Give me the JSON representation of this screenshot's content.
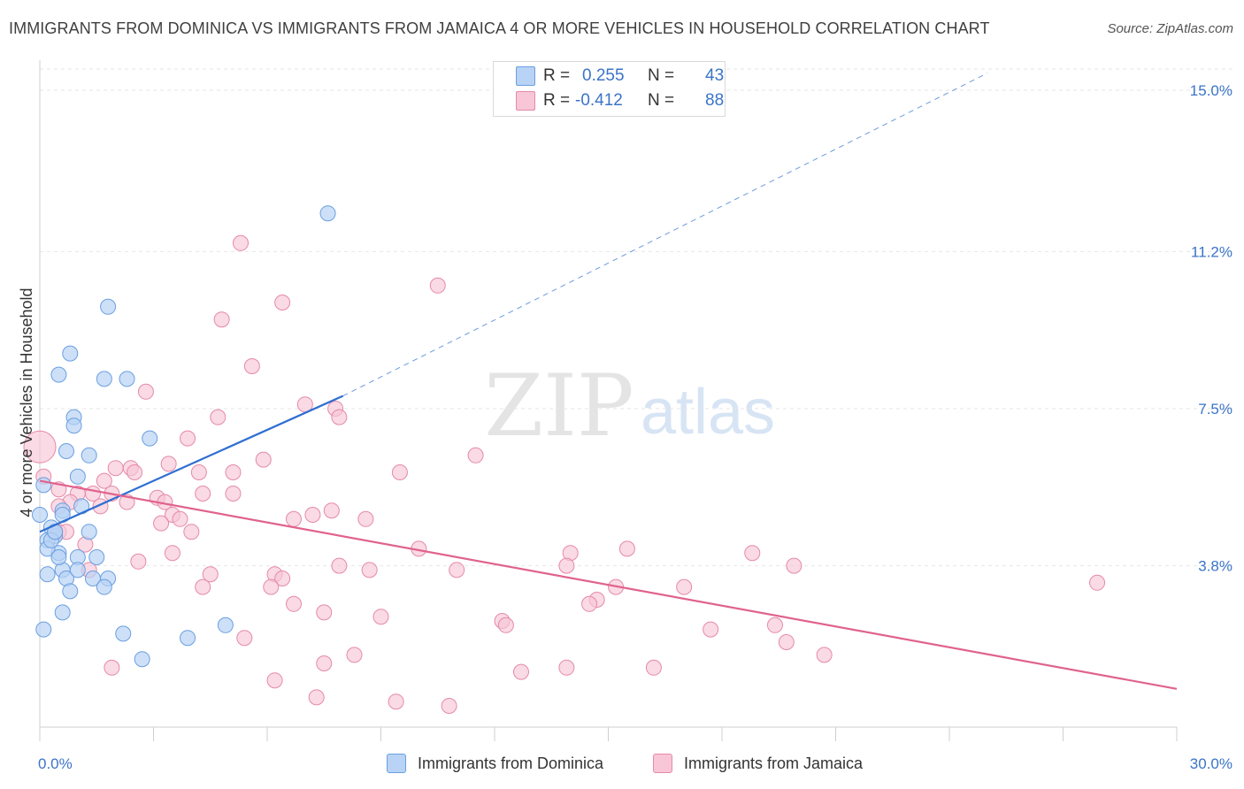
{
  "title": "IMMIGRANTS FROM DOMINICA VS IMMIGRANTS FROM JAMAICA 4 OR MORE VEHICLES IN HOUSEHOLD CORRELATION CHART",
  "source": "Source: ZipAtlas.com",
  "watermark": {
    "zip": "ZIP",
    "atlas": "atlas"
  },
  "legend": {
    "rows": [
      {
        "r_label": "R =",
        "r_value": "0.255",
        "n_label": "N =",
        "n_value": "43"
      },
      {
        "r_label": "R =",
        "r_value": "-0.412",
        "n_label": "N =",
        "n_value": "88"
      }
    ]
  },
  "colors": {
    "dominica_fill": "#b8d3f5",
    "dominica_stroke": "#6a9fe0",
    "dominica_line": "#2f6fd1",
    "jamaica_fill": "#f8c6d6",
    "jamaica_stroke": "#e58aa8",
    "jamaica_line": "#e0628e",
    "tick_label": "#3b74c7",
    "grid": "#e6e6e6"
  },
  "chart_data": {
    "type": "scatter",
    "title": "IMMIGRANTS FROM DOMINICA VS IMMIGRANTS FROM JAMAICA 4 OR MORE VEHICLES IN HOUSEHOLD CORRELATION CHART",
    "xlabel": "",
    "ylabel": "4 or more Vehicles in Household",
    "xlim": [
      0,
      30
    ],
    "ylim": [
      0,
      15.5
    ],
    "x_tick_labels": [
      "0.0%",
      "30.0%"
    ],
    "y_ticks": [
      3.8,
      7.5,
      11.2,
      15.0
    ],
    "y_tick_labels": [
      "3.8%",
      "7.5%",
      "11.2%",
      "15.0%"
    ],
    "grid": "horizontal dashed",
    "legend_position": "top-center",
    "series": [
      {
        "name": "Immigrants from Dominica",
        "r": 0.255,
        "n": 43,
        "trend": {
          "x": [
            0.0,
            8.0
          ],
          "y": [
            4.6,
            7.8
          ],
          "extended_to": [
            25.0,
            15.4
          ]
        },
        "points": [
          [
            7.6,
            12.1
          ],
          [
            1.8,
            9.9
          ],
          [
            0.8,
            8.8
          ],
          [
            0.5,
            8.3
          ],
          [
            1.7,
            8.2
          ],
          [
            2.3,
            8.2
          ],
          [
            0.9,
            7.3
          ],
          [
            0.9,
            7.1
          ],
          [
            2.9,
            6.8
          ],
          [
            0.7,
            6.5
          ],
          [
            1.3,
            6.4
          ],
          [
            0.1,
            5.7
          ],
          [
            1.0,
            5.9
          ],
          [
            0.6,
            5.1
          ],
          [
            1.1,
            5.2
          ],
          [
            0.0,
            5.0
          ],
          [
            0.3,
            4.7
          ],
          [
            0.4,
            4.5
          ],
          [
            1.3,
            4.6
          ],
          [
            0.2,
            4.4
          ],
          [
            0.5,
            4.1
          ],
          [
            1.0,
            4.0
          ],
          [
            1.5,
            4.0
          ],
          [
            0.6,
            3.7
          ],
          [
            0.2,
            3.6
          ],
          [
            0.7,
            3.5
          ],
          [
            1.4,
            3.5
          ],
          [
            1.8,
            3.5
          ],
          [
            0.8,
            3.2
          ],
          [
            1.7,
            3.3
          ],
          [
            0.6,
            2.7
          ],
          [
            0.1,
            2.3
          ],
          [
            2.2,
            2.2
          ],
          [
            4.9,
            2.4
          ],
          [
            3.9,
            2.1
          ],
          [
            2.7,
            1.6
          ],
          [
            0.4,
            4.6
          ],
          [
            0.2,
            4.2
          ],
          [
            0.5,
            4.0
          ],
          [
            0.3,
            4.4
          ],
          [
            0.6,
            5.0
          ],
          [
            1.0,
            3.7
          ],
          [
            0.4,
            4.6
          ]
        ]
      },
      {
        "name": "Immigrants from Jamaica",
        "r": -0.412,
        "n": 88,
        "trend": {
          "x": [
            0.0,
            30.0
          ],
          "y": [
            5.8,
            0.9
          ]
        },
        "points": [
          [
            0.0,
            6.6
          ],
          [
            5.3,
            11.4
          ],
          [
            10.5,
            10.4
          ],
          [
            6.4,
            10.0
          ],
          [
            4.8,
            9.6
          ],
          [
            5.6,
            8.5
          ],
          [
            2.8,
            7.9
          ],
          [
            7.0,
            7.6
          ],
          [
            7.8,
            7.5
          ],
          [
            7.9,
            7.3
          ],
          [
            4.7,
            7.3
          ],
          [
            3.9,
            6.8
          ],
          [
            11.5,
            6.4
          ],
          [
            5.9,
            6.3
          ],
          [
            3.4,
            6.2
          ],
          [
            2.4,
            6.1
          ],
          [
            2.0,
            6.1
          ],
          [
            2.5,
            6.0
          ],
          [
            4.2,
            6.0
          ],
          [
            5.1,
            6.0
          ],
          [
            9.5,
            6.0
          ],
          [
            0.1,
            5.9
          ],
          [
            1.7,
            5.8
          ],
          [
            0.5,
            5.6
          ],
          [
            1.4,
            5.5
          ],
          [
            1.0,
            5.5
          ],
          [
            1.9,
            5.5
          ],
          [
            4.3,
            5.5
          ],
          [
            5.1,
            5.5
          ],
          [
            0.8,
            5.3
          ],
          [
            2.3,
            5.3
          ],
          [
            1.6,
            5.2
          ],
          [
            3.1,
            5.4
          ],
          [
            3.3,
            5.3
          ],
          [
            0.5,
            5.2
          ],
          [
            7.7,
            5.1
          ],
          [
            3.5,
            5.0
          ],
          [
            3.7,
            4.9
          ],
          [
            6.7,
            4.9
          ],
          [
            8.6,
            4.9
          ],
          [
            3.2,
            4.8
          ],
          [
            7.2,
            5.0
          ],
          [
            0.5,
            4.6
          ],
          [
            0.7,
            4.6
          ],
          [
            4.0,
            4.6
          ],
          [
            1.2,
            4.3
          ],
          [
            10.0,
            4.2
          ],
          [
            3.5,
            4.1
          ],
          [
            14.0,
            4.1
          ],
          [
            15.5,
            4.2
          ],
          [
            18.8,
            4.1
          ],
          [
            2.6,
            3.9
          ],
          [
            7.9,
            3.8
          ],
          [
            13.9,
            3.8
          ],
          [
            19.9,
            3.8
          ],
          [
            4.5,
            3.6
          ],
          [
            6.2,
            3.6
          ],
          [
            6.4,
            3.5
          ],
          [
            8.7,
            3.7
          ],
          [
            11.0,
            3.7
          ],
          [
            6.1,
            3.3
          ],
          [
            4.3,
            3.3
          ],
          [
            15.2,
            3.3
          ],
          [
            17.0,
            3.3
          ],
          [
            27.9,
            3.4
          ],
          [
            14.7,
            3.0
          ],
          [
            14.5,
            2.9
          ],
          [
            6.7,
            2.9
          ],
          [
            7.5,
            2.7
          ],
          [
            9.0,
            2.6
          ],
          [
            12.2,
            2.5
          ],
          [
            12.3,
            2.4
          ],
          [
            17.7,
            2.3
          ],
          [
            5.4,
            2.1
          ],
          [
            19.4,
            2.4
          ],
          [
            19.7,
            2.0
          ],
          [
            20.7,
            1.7
          ],
          [
            8.3,
            1.7
          ],
          [
            7.5,
            1.5
          ],
          [
            1.9,
            1.4
          ],
          [
            13.9,
            1.4
          ],
          [
            16.2,
            1.4
          ],
          [
            12.7,
            1.3
          ],
          [
            6.2,
            1.1
          ],
          [
            7.3,
            0.7
          ],
          [
            9.4,
            0.6
          ],
          [
            10.8,
            0.5
          ],
          [
            1.3,
            3.7
          ]
        ]
      }
    ]
  },
  "bottom_legend": [
    {
      "label": "Immigrants from Dominica"
    },
    {
      "label": "Immigrants from Jamaica"
    }
  ]
}
